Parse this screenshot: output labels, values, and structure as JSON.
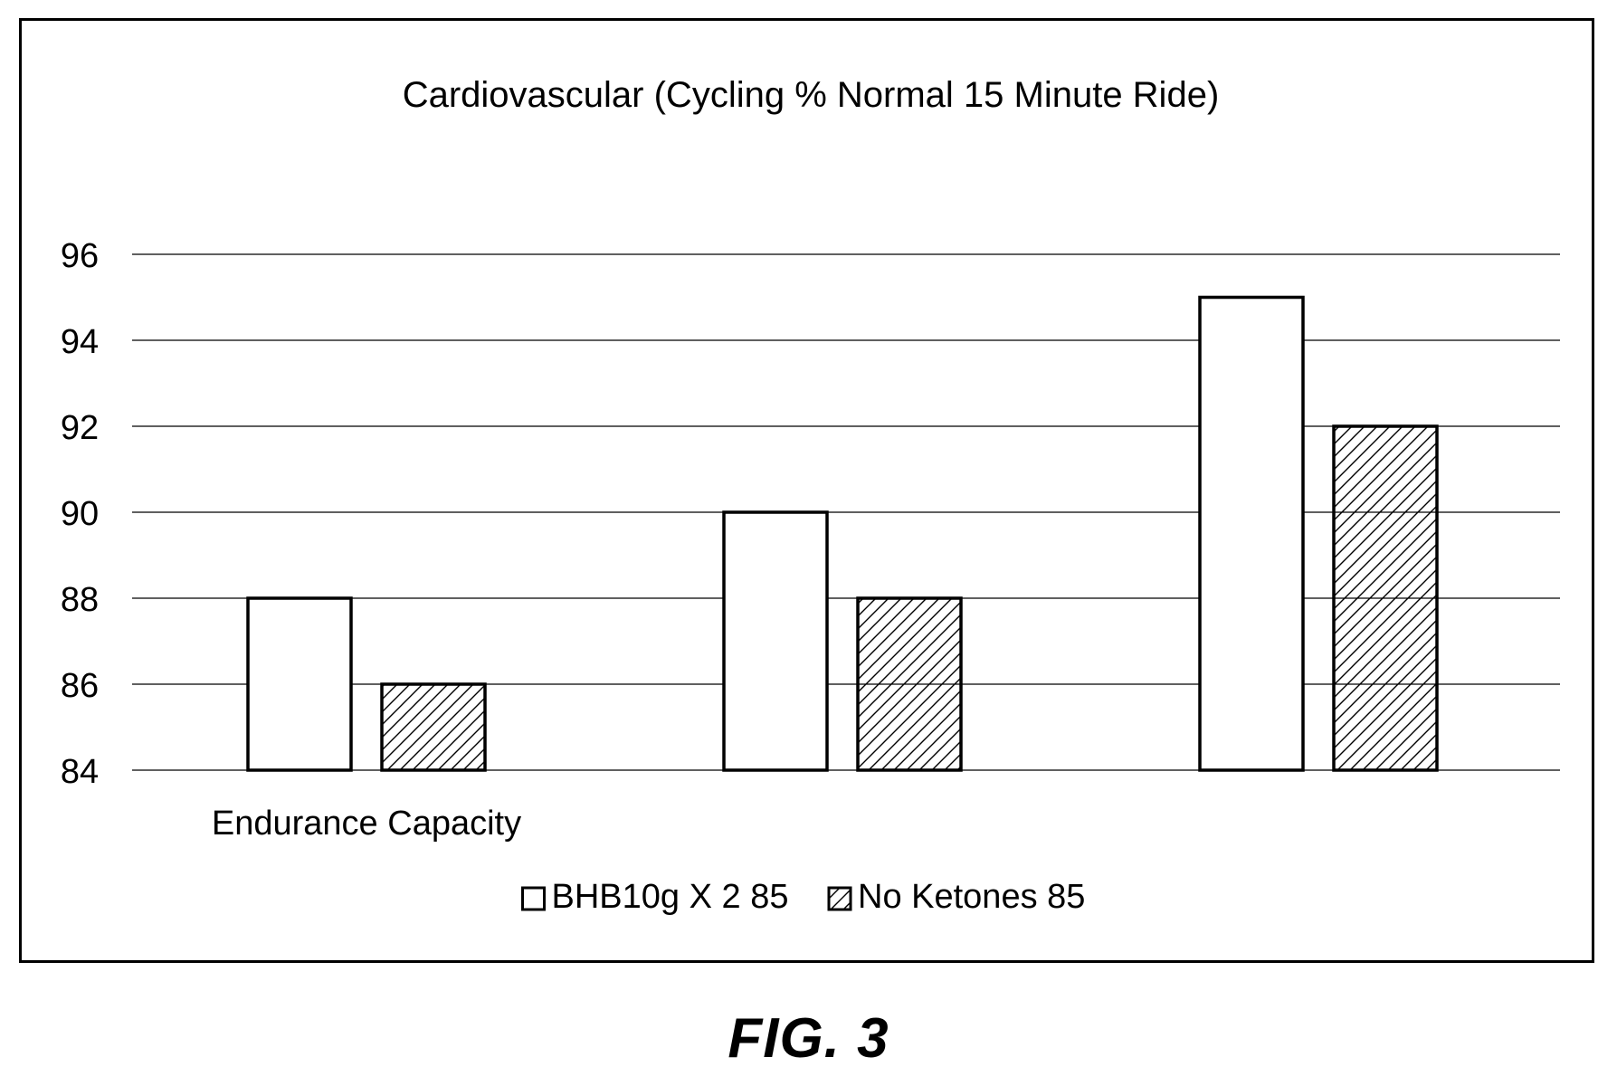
{
  "figure_label": "FIG. 3",
  "chart_data": {
    "type": "bar",
    "title": "Cardiovascular (Cycling % Normal 15 Minute Ride)",
    "xlabel": "",
    "ylabel": "",
    "categories": [
      "Endurance Capacity",
      "",
      ""
    ],
    "series": [
      {
        "name": "BHB10g X 2 85",
        "values": [
          88,
          90,
          95
        ],
        "pattern": "none",
        "fill": "#ffffff"
      },
      {
        "name": "No Ketones 85",
        "values": [
          86,
          88,
          92
        ],
        "pattern": "diagonal-hatch",
        "fill": "#ffffff"
      }
    ],
    "ylim": [
      84,
      96
    ],
    "yticks": [
      84,
      86,
      88,
      90,
      92,
      94,
      96
    ],
    "grid": true,
    "legend_position": "bottom",
    "colors": {
      "stroke": "#000000",
      "grid": "#000000",
      "background": "#ffffff"
    }
  }
}
